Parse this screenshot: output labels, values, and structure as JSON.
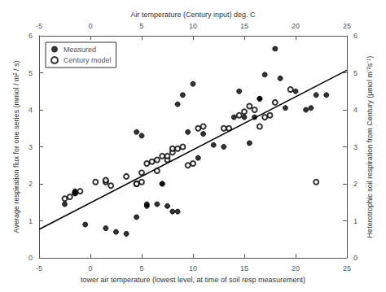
{
  "chart_data": {
    "type": "scatter",
    "xlabel": "tower air temperature (lowest level, at time of soil resp measurement)",
    "x2label": "Air temperature (Century input) deg. C",
    "ylabel": "Average respiration flux for one series (mmol / m² / s)",
    "y2label": "Heterotrophic soil respiration from Century (μmol m⁻²s⁻¹)",
    "xlim": [
      -5,
      25
    ],
    "xticks": [
      -5,
      0,
      5,
      10,
      15,
      20,
      25
    ],
    "x2lim": [
      -5,
      25
    ],
    "x2ticks": [
      -5,
      0,
      5,
      10,
      15,
      20,
      25
    ],
    "ylim": [
      0,
      6
    ],
    "yticks": [
      0,
      1,
      2,
      3,
      4,
      5,
      6
    ],
    "y2lim": [
      0,
      6
    ],
    "y2ticks": [
      0,
      1,
      2,
      3,
      4,
      5,
      6
    ],
    "grid": false,
    "legend": "upper left",
    "series": [
      {
        "name": "Measured",
        "type": "scatter",
        "marker": "circle",
        "color": "#000000",
        "x": [
          -2.5,
          -1.5,
          -1.5,
          -0.5,
          1.5,
          2.5,
          3.5,
          4.5,
          4.5,
          5.0,
          5.5,
          5.5,
          6.5,
          7.0,
          7.0,
          7.5,
          8.0,
          8.5,
          8.5,
          9.0,
          9.5,
          10.0,
          10.5,
          11.0,
          12.0,
          13.0,
          14.0,
          14.5,
          15.0,
          15.5,
          16.0,
          16.5,
          16.5,
          17.0,
          18.0,
          18.5,
          19.0,
          20.0,
          21.0,
          21.5,
          22.0,
          23.0
        ],
        "values": [
          1.45,
          1.75,
          1.8,
          0.9,
          0.8,
          0.7,
          0.65,
          1.1,
          3.4,
          3.3,
          1.4,
          1.45,
          1.45,
          2.0,
          2.0,
          1.4,
          1.25,
          1.25,
          4.15,
          4.4,
          3.4,
          4.7,
          2.7,
          3.35,
          3.05,
          3.0,
          3.8,
          4.5,
          3.8,
          3.1,
          3.8,
          4.3,
          4.3,
          4.95,
          5.65,
          4.85,
          4.05,
          4.5,
          4.0,
          4.05,
          4.4,
          4.4
        ]
      },
      {
        "name": "Century model",
        "type": "scatter",
        "marker": "open circle",
        "color": "#000000",
        "x": [
          -2.5,
          -2.0,
          -1.5,
          -1.0,
          0.5,
          1.5,
          1.5,
          2.0,
          3.5,
          4.5,
          4.5,
          5.0,
          5.0,
          5.5,
          6.0,
          6.5,
          6.5,
          7.0,
          7.5,
          7.5,
          8.0,
          8.0,
          8.5,
          9.0,
          9.5,
          10.0,
          10.5,
          11.0,
          13.0,
          13.5,
          14.5,
          15.0,
          15.5,
          16.0,
          16.5,
          17.0,
          17.5,
          18.0,
          19.5,
          22.0
        ],
        "values": [
          1.6,
          1.65,
          1.75,
          1.8,
          2.05,
          2.05,
          2.1,
          1.95,
          2.2,
          2.0,
          2.0,
          2.05,
          2.3,
          2.55,
          2.6,
          2.35,
          2.65,
          2.75,
          2.65,
          2.75,
          2.85,
          2.95,
          2.95,
          3.0,
          2.5,
          2.55,
          3.5,
          3.55,
          3.5,
          3.5,
          3.85,
          3.95,
          4.1,
          4.0,
          3.55,
          3.8,
          3.85,
          4.2,
          4.55,
          2.05
        ]
      },
      {
        "type": "line",
        "line_style": "solid",
        "color": "#000000",
        "x": [
          -5,
          25
        ],
        "values": [
          0.77,
          5.07
        ]
      }
    ]
  }
}
